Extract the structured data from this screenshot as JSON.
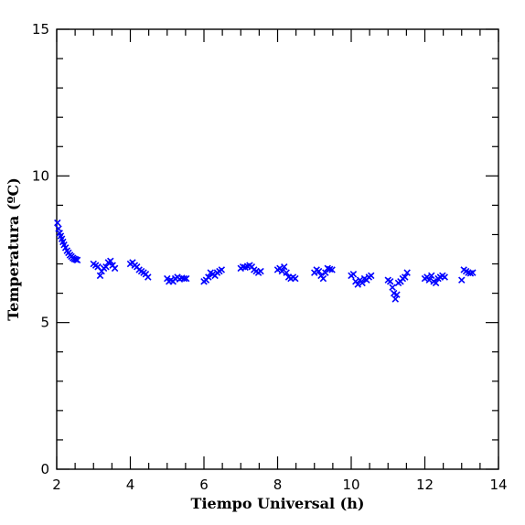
{
  "chart_data": {
    "type": "scatter",
    "title": "",
    "xlabel": "Tiempo Universal (h)",
    "ylabel": "Temperatura (ºC)",
    "xlim": [
      2,
      14
    ],
    "ylim": [
      0,
      15
    ],
    "x_major_ticks": [
      2,
      4,
      6,
      8,
      10,
      12,
      14
    ],
    "y_major_ticks": [
      0,
      5,
      10,
      15
    ],
    "x_minor_step": 0.5,
    "y_minor_step": 1,
    "marker": "x",
    "color": "#0000ff",
    "grid": false,
    "legend": "none",
    "series": [
      {
        "points": [
          [
            2.02,
            8.4
          ],
          [
            2.05,
            8.2
          ],
          [
            2.08,
            8.05
          ],
          [
            2.11,
            7.95
          ],
          [
            2.14,
            7.85
          ],
          [
            2.17,
            7.75
          ],
          [
            2.2,
            7.65
          ],
          [
            2.24,
            7.55
          ],
          [
            2.28,
            7.45
          ],
          [
            2.32,
            7.38
          ],
          [
            2.36,
            7.3
          ],
          [
            2.4,
            7.25
          ],
          [
            2.44,
            7.2
          ],
          [
            2.48,
            7.17
          ],
          [
            2.52,
            7.15
          ],
          [
            2.56,
            7.13
          ],
          [
            3.0,
            7.0
          ],
          [
            3.06,
            6.95
          ],
          [
            3.12,
            6.9
          ],
          [
            3.18,
            6.6
          ],
          [
            3.22,
            6.75
          ],
          [
            3.28,
            6.85
          ],
          [
            3.34,
            6.9
          ],
          [
            3.4,
            7.05
          ],
          [
            3.46,
            7.1
          ],
          [
            3.52,
            6.95
          ],
          [
            3.58,
            6.85
          ],
          [
            4.0,
            7.0
          ],
          [
            4.06,
            7.05
          ],
          [
            4.12,
            6.95
          ],
          [
            4.18,
            6.9
          ],
          [
            4.24,
            6.8
          ],
          [
            4.3,
            6.75
          ],
          [
            4.36,
            6.7
          ],
          [
            4.42,
            6.65
          ],
          [
            4.48,
            6.55
          ],
          [
            5.0,
            6.5
          ],
          [
            5.05,
            6.4
          ],
          [
            5.1,
            6.45
          ],
          [
            5.16,
            6.4
          ],
          [
            5.22,
            6.5
          ],
          [
            5.28,
            6.55
          ],
          [
            5.34,
            6.48
          ],
          [
            5.4,
            6.52
          ],
          [
            5.46,
            6.5
          ],
          [
            5.52,
            6.5
          ],
          [
            6.0,
            6.4
          ],
          [
            6.06,
            6.45
          ],
          [
            6.12,
            6.55
          ],
          [
            6.18,
            6.7
          ],
          [
            6.24,
            6.65
          ],
          [
            6.3,
            6.6
          ],
          [
            6.36,
            6.7
          ],
          [
            6.42,
            6.75
          ],
          [
            6.48,
            6.8
          ],
          [
            7.0,
            6.85
          ],
          [
            7.06,
            6.9
          ],
          [
            7.12,
            6.88
          ],
          [
            7.18,
            6.92
          ],
          [
            7.24,
            6.95
          ],
          [
            7.3,
            6.9
          ],
          [
            7.36,
            6.8
          ],
          [
            7.42,
            6.75
          ],
          [
            7.48,
            6.7
          ],
          [
            7.54,
            6.75
          ],
          [
            8.0,
            6.8
          ],
          [
            8.06,
            6.85
          ],
          [
            8.12,
            6.75
          ],
          [
            8.18,
            6.9
          ],
          [
            8.24,
            6.7
          ],
          [
            8.3,
            6.55
          ],
          [
            8.36,
            6.5
          ],
          [
            8.42,
            6.55
          ],
          [
            8.48,
            6.5
          ],
          [
            9.0,
            6.7
          ],
          [
            9.06,
            6.8
          ],
          [
            9.12,
            6.75
          ],
          [
            9.18,
            6.6
          ],
          [
            9.24,
            6.5
          ],
          [
            9.3,
            6.7
          ],
          [
            9.36,
            6.85
          ],
          [
            9.42,
            6.82
          ],
          [
            9.48,
            6.8
          ],
          [
            10.0,
            6.6
          ],
          [
            10.06,
            6.65
          ],
          [
            10.12,
            6.4
          ],
          [
            10.18,
            6.3
          ],
          [
            10.24,
            6.45
          ],
          [
            10.3,
            6.35
          ],
          [
            10.36,
            6.5
          ],
          [
            10.42,
            6.45
          ],
          [
            10.48,
            6.55
          ],
          [
            10.54,
            6.6
          ],
          [
            11.0,
            6.45
          ],
          [
            11.06,
            6.4
          ],
          [
            11.12,
            6.2
          ],
          [
            11.16,
            6.0
          ],
          [
            11.2,
            5.8
          ],
          [
            11.24,
            5.95
          ],
          [
            11.28,
            6.35
          ],
          [
            11.34,
            6.4
          ],
          [
            11.4,
            6.5
          ],
          [
            11.46,
            6.55
          ],
          [
            11.52,
            6.7
          ],
          [
            12.0,
            6.5
          ],
          [
            12.06,
            6.55
          ],
          [
            12.12,
            6.45
          ],
          [
            12.18,
            6.6
          ],
          [
            12.24,
            6.4
          ],
          [
            12.3,
            6.35
          ],
          [
            12.36,
            6.5
          ],
          [
            12.42,
            6.55
          ],
          [
            12.48,
            6.6
          ],
          [
            12.54,
            6.55
          ],
          [
            13.0,
            6.45
          ],
          [
            13.06,
            6.8
          ],
          [
            13.12,
            6.75
          ],
          [
            13.18,
            6.7
          ],
          [
            13.24,
            6.68
          ],
          [
            13.3,
            6.7
          ]
        ]
      }
    ]
  }
}
